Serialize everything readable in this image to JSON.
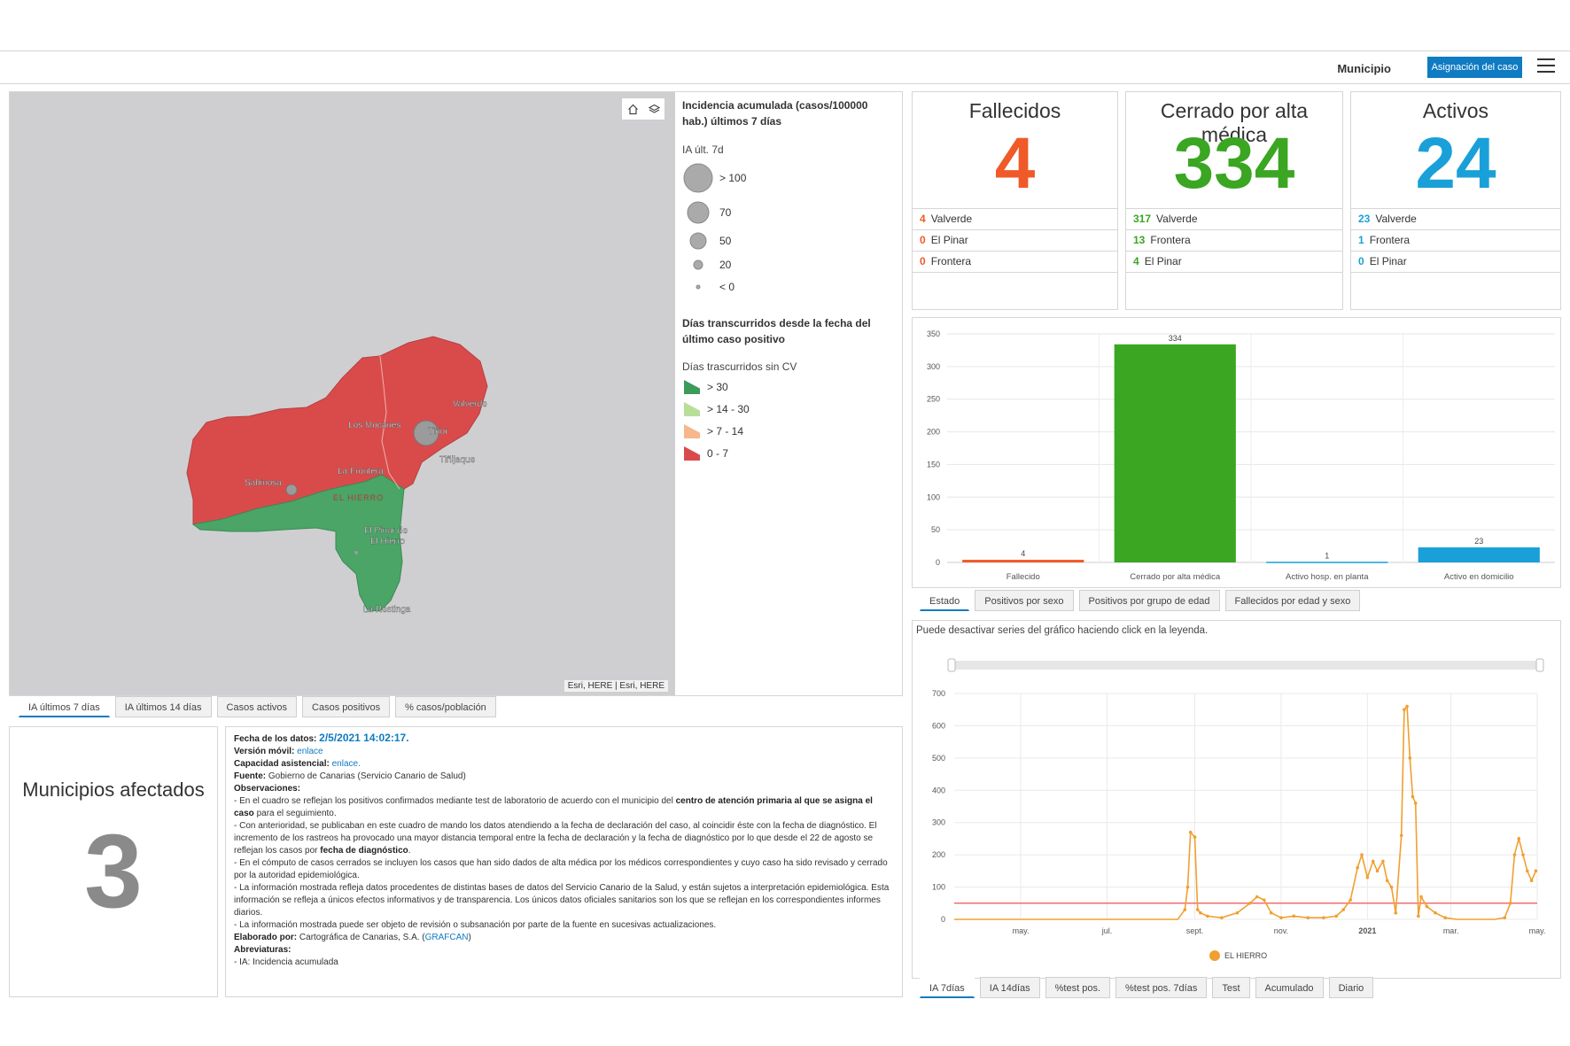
{
  "header": {
    "label": "Municipio",
    "button": "Asignación del caso"
  },
  "map": {
    "attribution": "Esri, HERE | Esri, HERE",
    "island_label": "EL HIERRO",
    "places": [
      "Valverde",
      "Los Mocanes",
      "Tiñor",
      "Tiñijaque",
      "La Frontera",
      "Sabinosa",
      "El Pinar de",
      "El Hierro",
      "La Restinga"
    ],
    "colors": {
      "red": "#d94b4b",
      "green": "#4aa567",
      "background": "#cfcfd1"
    }
  },
  "legend": {
    "title1": "Incidencia acumulada (casos/100000 hab.) últimos 7 días",
    "sub1": "IA últ. 7d",
    "sizes": [
      "> 100",
      "70",
      "50",
      "20",
      "< 0"
    ],
    "title2": "Días transcurridos desde la fecha del último caso positivo",
    "sub2": "Días trascurridos sin CV",
    "classes": [
      {
        "label": "> 30",
        "color": "#3c9a5a"
      },
      {
        "label": "> 14 - 30",
        "color": "#b7df98"
      },
      {
        "label": "> 7 - 14",
        "color": "#f6b78a"
      },
      {
        "label": "0 - 7",
        "color": "#d94b4b"
      }
    ]
  },
  "map_tabs": [
    "IA últimos 7 días",
    "IA últimos 14 días",
    "Casos activos",
    "Casos positivos",
    "% casos/población"
  ],
  "municipios": {
    "title": "Municipios afectados",
    "value": "3"
  },
  "info": {
    "fecha_label": "Fecha de los datos:",
    "fecha_value": "2/5/2021 14:02:17.",
    "movil_label": "Versión móvil:",
    "movil_link": "enlace",
    "capacidad_label": "Capacidad asistencial:",
    "capacidad_link": "enlace.",
    "fuente_label": "Fuente:",
    "fuente_value": "Gobierno de Canarias (Servicio Canario de Salud)",
    "obs_label": "Observaciones:",
    "obs1a": "- En el cuadro se reflejan los positivos confirmados mediante test de laboratorio de acuerdo con el municipio del ",
    "obs1b": "centro de atención primaria al que se asigna el caso",
    "obs1c": " para el seguimiento.",
    "obs2a": "- Con anterioridad, se publicaban en este cuadro de mando los datos atendiendo a la fecha de declaración del caso, al coincidir éste con la fecha de diagnóstico. El incremento de los rastreos ha provocado una mayor distancia temporal entre la fecha de declaración y la fecha de diagnóstico por lo que desde el 22 de agosto se reflejan los casos por ",
    "obs2b": "fecha de diagnóstico",
    "obs2c": ".",
    "obs3": "- En el cómputo de casos cerrados se incluyen los casos que han sido dados de alta médica por los médicos correspondientes y cuyo caso ha sido revisado y cerrado por la autoridad epidemiológica.",
    "obs4": "- La información mostrada refleja datos procedentes de distintas bases de datos del Servicio Canario de la Salud, y están sujetos a interpretación epidemiológica. Esta información se refleja a únicos efectos informativos y de transparencia. Los únicos datos oficiales sanitarios son los que se reflejan en los correspondientes informes diarios.",
    "obs5": "- La información mostrada puede ser objeto de revisión o subsanación por parte de la fuente en sucesivas actualizaciones.",
    "elaborado_label": "Elaborado por:",
    "elaborado_value": "Cartográfica de Canarias, S.A. (",
    "elaborado_link": "GRAFCAN",
    "elaborado_end": ")",
    "abrev_label": "Abreviaturas:",
    "abrev_value": "- IA: Incidencia acumulada"
  },
  "kpis": [
    {
      "title": "Fallecidos",
      "value": "4",
      "color": "#f05a28",
      "rows": [
        {
          "n": "4",
          "name": "Valverde"
        },
        {
          "n": "0",
          "name": "El Pinar"
        },
        {
          "n": "0",
          "name": "Frontera"
        }
      ]
    },
    {
      "title": "Cerrado por alta médica",
      "value": "334",
      "color": "#3aa622",
      "rows": [
        {
          "n": "317",
          "name": "Valverde"
        },
        {
          "n": "13",
          "name": "Frontera"
        },
        {
          "n": "4",
          "name": "El Pinar"
        }
      ]
    },
    {
      "title": "Activos",
      "value": "24",
      "color": "#1aa0d8",
      "rows": [
        {
          "n": "23",
          "name": "Valverde"
        },
        {
          "n": "1",
          "name": "Frontera"
        },
        {
          "n": "0",
          "name": "El Pinar"
        }
      ]
    }
  ],
  "bar_tabs": [
    "Estado",
    "Positivos por sexo",
    "Positivos por grupo de edad",
    "Fallecidos por edad y sexo"
  ],
  "line_note": "Puede desactivar series del gráfico haciendo click en la leyenda.",
  "line_tabs": [
    "IA 7días",
    "IA 14días",
    "%test pos.",
    "%test pos. 7días",
    "Test",
    "Acumulado",
    "Diario"
  ],
  "chart_data": [
    {
      "type": "bar",
      "categories": [
        "Fallecido",
        "Cerrado por alta médica",
        "Activo hosp. en planta",
        "Activo en domicilio"
      ],
      "values": [
        4,
        334,
        1,
        23
      ],
      "colors": [
        "#f05a28",
        "#3aa622",
        "#1aa0d8",
        "#1aa0d8"
      ],
      "ylim": [
        0,
        350
      ],
      "yticks": [
        0,
        50,
        100,
        150,
        200,
        250,
        300,
        350
      ],
      "grid": true
    },
    {
      "type": "line",
      "series": [
        {
          "name": "EL HIERRO",
          "color": "#f0a030",
          "x": [
            "2020-03-15",
            "2020-05-01",
            "2020-07-01",
            "2020-08-20",
            "2020-08-25",
            "2020-08-27",
            "2020-08-29",
            "2020-09-01",
            "2020-09-03",
            "2020-09-05",
            "2020-09-10",
            "2020-09-20",
            "2020-10-01",
            "2020-10-10",
            "2020-10-15",
            "2020-10-20",
            "2020-10-25",
            "2020-11-01",
            "2020-11-10",
            "2020-11-20",
            "2020-12-01",
            "2020-12-10",
            "2020-12-15",
            "2020-12-20",
            "2020-12-25",
            "2020-12-28",
            "2021-01-01",
            "2021-01-05",
            "2021-01-08",
            "2021-01-12",
            "2021-01-15",
            "2021-01-18",
            "2021-01-21",
            "2021-01-25",
            "2021-01-27",
            "2021-01-29",
            "2021-01-31",
            "2021-02-02",
            "2021-02-04",
            "2021-02-06",
            "2021-02-08",
            "2021-02-12",
            "2021-02-18",
            "2021-02-25",
            "2021-03-05",
            "2021-03-20",
            "2021-04-01",
            "2021-04-08",
            "2021-04-12",
            "2021-04-15",
            "2021-04-18",
            "2021-04-21",
            "2021-04-24",
            "2021-04-27",
            "2021-04-30"
          ],
          "values": [
            0,
            0,
            0,
            0,
            30,
            100,
            270,
            255,
            30,
            20,
            10,
            5,
            20,
            50,
            70,
            60,
            20,
            5,
            10,
            5,
            5,
            10,
            30,
            60,
            160,
            200,
            130,
            180,
            150,
            180,
            120,
            100,
            20,
            260,
            650,
            660,
            500,
            380,
            360,
            10,
            70,
            40,
            20,
            5,
            0,
            0,
            0,
            5,
            50,
            200,
            250,
            200,
            150,
            120,
            150
          ]
        }
      ],
      "xticks": [
        "may.",
        "jul.",
        "sept.",
        "nov.",
        "2021",
        "mar.",
        "may."
      ],
      "yticks": [
        0,
        100,
        200,
        300,
        400,
        500,
        600,
        700
      ],
      "ylim": [
        0,
        700
      ],
      "reference_line": 50,
      "reference_color": "#f05050",
      "legend": "bottom-center",
      "grid": true
    }
  ]
}
